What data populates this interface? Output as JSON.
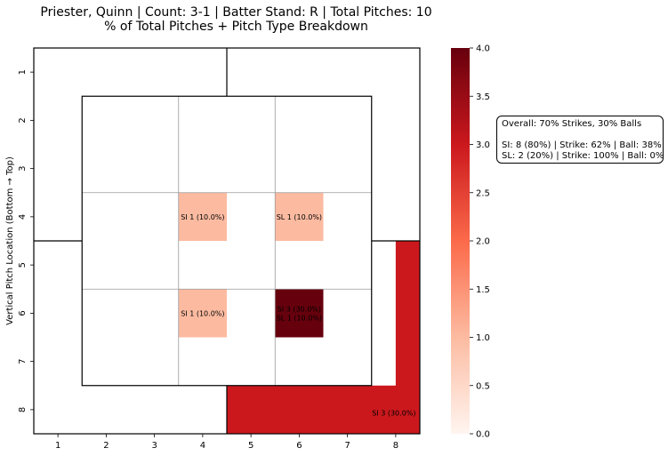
{
  "chart_data": {
    "type": "heatmap",
    "title_line1": "Priester, Quinn | Count: 3-1 | Batter Stand: R | Total Pitches: 10",
    "title_line2": "% of Total Pitches + Pitch Type Breakdown",
    "xlabel": "",
    "ylabel": "Vertical Pitch Location (Bottom → Top)",
    "x_ticks": [
      "1",
      "2",
      "3",
      "4",
      "5",
      "6",
      "7",
      "8"
    ],
    "y_ticks": [
      "1",
      "2",
      "3",
      "4",
      "5",
      "6",
      "7",
      "8"
    ],
    "cells": [
      {
        "x_range": [
          4,
          5
        ],
        "y_range": [
          4,
          5
        ],
        "value": 1,
        "label": [
          "SI 1 (10.0%)"
        ]
      },
      {
        "x_range": [
          6,
          7
        ],
        "y_range": [
          4,
          5
        ],
        "value": 1,
        "label": [
          "SL 1 (10.0%)"
        ]
      },
      {
        "x_range": [
          4,
          5
        ],
        "y_range": [
          6,
          7
        ],
        "value": 1,
        "label": [
          "SI 1 (10.0%)"
        ]
      },
      {
        "x_range": [
          6,
          7
        ],
        "y_range": [
          6,
          7
        ],
        "value": 4,
        "label": [
          "SI 3 (30.0%)",
          "SL 1 (10.0%)"
        ]
      },
      {
        "x_range": [
          5,
          8
        ],
        "y_range": [
          5,
          8
        ],
        "value": 3,
        "label": [
          "SI 3 (30.0%)"
        ],
        "shape": "L"
      }
    ],
    "colorbar": {
      "min": 0.0,
      "max": 4.0,
      "ticks": [
        "0.0",
        "0.5",
        "1.0",
        "1.5",
        "2.0",
        "2.5",
        "3.0",
        "3.5",
        "4.0"
      ],
      "colormap": "Reds"
    },
    "annotation": {
      "line1": "Overall: 70% Strikes, 30% Balls",
      "line2": "SI: 8 (80%) | Strike: 62% | Ball: 38%",
      "line3": "SL: 2 (20%) | Strike: 100% | Ball: 0%"
    }
  }
}
